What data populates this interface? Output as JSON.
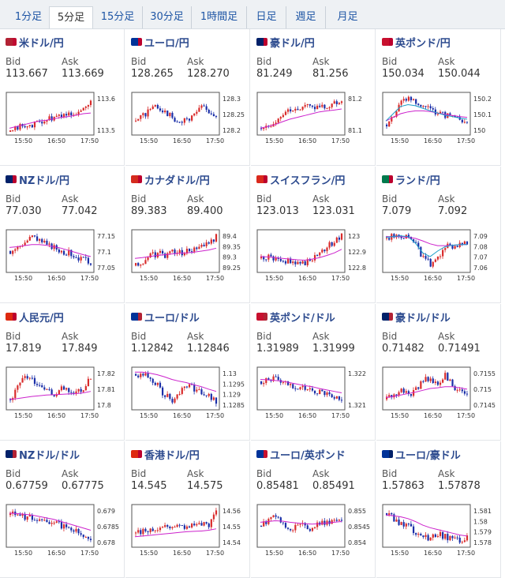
{
  "tabs": [
    {
      "label": "1分足",
      "active": false
    },
    {
      "label": "5分足",
      "active": true
    },
    {
      "label": "15分足",
      "active": false
    },
    {
      "label": "30分足",
      "active": false
    },
    {
      "label": "1時間足",
      "active": false
    },
    {
      "label": "日足",
      "active": false
    },
    {
      "label": "週足",
      "active": false
    },
    {
      "label": "月足",
      "active": false
    }
  ],
  "bid_label": "Bid",
  "ask_label": "Ask",
  "x_ticks": [
    "15:50",
    "16:50",
    "17:50"
  ],
  "colors": {
    "up": "#d92b2b",
    "down": "#1a2ea8",
    "ma": "#cc22cc",
    "ma2": "#1aa0c8"
  },
  "pairs": [
    {
      "name": "米ドル/円",
      "flag": [
        "#b22234",
        "#bf0a30"
      ],
      "bid": "113.667",
      "ask": "113.669",
      "y_ticks": [
        "113.6",
        "113.5"
      ],
      "trend": [
        0,
        0.1,
        0.2,
        0.15,
        0.3,
        0.35,
        0.4,
        0.45,
        0.5,
        0.55,
        0.62,
        0.8
      ],
      "ma": [
        0.1,
        0.15,
        0.2,
        0.25,
        0.3,
        0.32,
        0.36,
        0.4,
        0.42,
        0.46,
        0.5,
        0.52
      ],
      "ma2": []
    },
    {
      "name": "ユーロ/円",
      "flag": [
        "#003399",
        "#bc002d"
      ],
      "bid": "128.265",
      "ask": "128.270",
      "y_ticks": [
        "128.3",
        "128.25",
        "128.2"
      ],
      "trend": [
        0.3,
        0.45,
        0.6,
        0.7,
        0.55,
        0.4,
        0.25,
        0.35,
        0.5,
        0.7,
        0.55,
        0.4
      ],
      "ma": [],
      "ma2": []
    },
    {
      "name": "豪ドル/円",
      "flag": [
        "#012169",
        "#bc002d"
      ],
      "bid": "81.249",
      "ask": "81.256",
      "y_ticks": [
        "81.2",
        "81.1"
      ],
      "trend": [
        0.1,
        0.15,
        0.3,
        0.55,
        0.65,
        0.6,
        0.7,
        0.62,
        0.72,
        0.7,
        0.78,
        0.85
      ],
      "ma": [
        0.1,
        0.15,
        0.2,
        0.28,
        0.35,
        0.4,
        0.45,
        0.5,
        0.55,
        0.58,
        0.6,
        0.63
      ],
      "ma2": []
    },
    {
      "name": "英ポンド/円",
      "flag": [
        "#c8102e",
        "#bc002d"
      ],
      "bid": "150.034",
      "ask": "150.044",
      "y_ticks": [
        "150.2",
        "150.1",
        "150"
      ],
      "trend": [
        0.2,
        0.5,
        0.8,
        0.9,
        0.8,
        0.7,
        0.6,
        0.55,
        0.45,
        0.4,
        0.35,
        0.3
      ],
      "ma": [
        0.3,
        0.4,
        0.5,
        0.55,
        0.58,
        0.58,
        0.56,
        0.52,
        0.48,
        0.45,
        0.42,
        0.4
      ],
      "ma2": [
        0.3,
        0.5,
        0.7,
        0.75,
        0.72,
        0.65,
        0.58,
        0.52,
        0.46,
        0.42,
        0.38,
        0.35
      ]
    },
    {
      "name": "NZドル/円",
      "flag": [
        "#012169",
        "#bc002d"
      ],
      "bid": "77.030",
      "ask": "77.042",
      "y_ticks": [
        "77.15",
        "77.1",
        "77.05"
      ],
      "trend": [
        0.5,
        0.6,
        0.75,
        0.9,
        0.8,
        0.65,
        0.6,
        0.5,
        0.45,
        0.35,
        0.25,
        0.2
      ],
      "ma": [
        0.6,
        0.62,
        0.65,
        0.68,
        0.68,
        0.66,
        0.62,
        0.58,
        0.52,
        0.46,
        0.4,
        0.35
      ],
      "ma2": []
    },
    {
      "name": "カナダドル/円",
      "flag": [
        "#d52b1e",
        "#bc002d"
      ],
      "bid": "89.383",
      "ask": "89.400",
      "y_ticks": [
        "89.4",
        "89.35",
        "89.3",
        "89.25"
      ],
      "trend": [
        0.1,
        0.2,
        0.35,
        0.45,
        0.4,
        0.5,
        0.45,
        0.5,
        0.55,
        0.6,
        0.7,
        0.9
      ],
      "ma": [
        0.3,
        0.32,
        0.35,
        0.38,
        0.4,
        0.42,
        0.44,
        0.45,
        0.47,
        0.5,
        0.53,
        0.58
      ],
      "ma2": []
    },
    {
      "name": "スイスフラン/円",
      "flag": [
        "#da291c",
        "#bc002d"
      ],
      "bid": "123.013",
      "ask": "123.031",
      "y_ticks": [
        "123",
        "122.9",
        "122.8"
      ],
      "trend": [
        0.3,
        0.35,
        0.3,
        0.25,
        0.2,
        0.15,
        0.2,
        0.3,
        0.45,
        0.6,
        0.8,
        0.95
      ],
      "ma": [
        0.35,
        0.34,
        0.32,
        0.3,
        0.28,
        0.26,
        0.25,
        0.28,
        0.32,
        0.38,
        0.45,
        0.55
      ],
      "ma2": []
    },
    {
      "name": "ランド/円",
      "flag": [
        "#007a4d",
        "#bc002d"
      ],
      "bid": "7.079",
      "ask": "7.092",
      "y_ticks": [
        "7.09",
        "7.08",
        "7.07",
        "7.06"
      ],
      "trend": [
        0.85,
        0.9,
        0.92,
        0.95,
        0.7,
        0.3,
        0.15,
        0.35,
        0.6,
        0.65,
        0.7,
        0.68
      ],
      "ma": [
        0.9,
        0.9,
        0.9,
        0.88,
        0.85,
        0.78,
        0.7,
        0.65,
        0.65,
        0.66,
        0.68,
        0.68
      ],
      "ma2": [
        0.88,
        0.9,
        0.92,
        0.9,
        0.72,
        0.45,
        0.35,
        0.5,
        0.62,
        0.66,
        0.68,
        0.68
      ]
    },
    {
      "name": "人民元/円",
      "flag": [
        "#de2910",
        "#bc002d"
      ],
      "bid": "17.819",
      "ask": "17.849",
      "y_ticks": [
        "17.82",
        "17.81",
        "17.8"
      ],
      "trend": [
        0.2,
        0.5,
        0.8,
        0.7,
        0.5,
        0.4,
        0.35,
        0.5,
        0.45,
        0.4,
        0.5,
        0.8
      ],
      "ma": [
        0.2,
        0.22,
        0.25,
        0.28,
        0.3,
        0.32,
        0.33,
        0.34,
        0.35,
        0.36,
        0.38,
        0.42
      ],
      "ma2": []
    },
    {
      "name": "ユーロ/ドル",
      "flag": [
        "#003399",
        "#b22234"
      ],
      "bid": "1.12842",
      "ask": "1.12846",
      "y_ticks": [
        "1.13",
        "1.1295",
        "1.129",
        "1.1285"
      ],
      "trend": [
        0.9,
        0.85,
        0.8,
        0.6,
        0.3,
        0.2,
        0.4,
        0.6,
        0.5,
        0.4,
        0.3,
        0.15
      ],
      "ma": [
        0.95,
        0.95,
        0.92,
        0.88,
        0.82,
        0.75,
        0.7,
        0.66,
        0.6,
        0.55,
        0.48,
        0.42
      ],
      "ma2": []
    },
    {
      "name": "英ポンド/ドル",
      "flag": [
        "#c8102e",
        "#b22234"
      ],
      "bid": "1.31989",
      "ask": "1.31999",
      "y_ticks": [
        "1.322",
        "1.321"
      ],
      "trend": [
        0.7,
        0.8,
        0.75,
        0.65,
        0.6,
        0.55,
        0.5,
        0.45,
        0.4,
        0.35,
        0.25,
        0.1
      ],
      "ma": [
        0.75,
        0.74,
        0.72,
        0.7,
        0.66,
        0.62,
        0.58,
        0.55,
        0.5,
        0.46,
        0.42,
        0.38
      ],
      "ma2": []
    },
    {
      "name": "豪ドル/ドル",
      "flag": [
        "#012169",
        "#b22234"
      ],
      "bid": "0.71482",
      "ask": "0.71491",
      "y_ticks": [
        "0.7155",
        "0.715",
        "0.7145"
      ],
      "trend": [
        0.2,
        0.3,
        0.5,
        0.35,
        0.45,
        0.75,
        0.8,
        0.55,
        0.9,
        0.6,
        0.4,
        0.3
      ],
      "ma": [
        0.25,
        0.28,
        0.32,
        0.36,
        0.4,
        0.45,
        0.5,
        0.52,
        0.55,
        0.55,
        0.52,
        0.48
      ],
      "ma2": []
    },
    {
      "name": "NZドル/ドル",
      "flag": [
        "#012169",
        "#b22234"
      ],
      "bid": "0.67759",
      "ask": "0.67775",
      "y_ticks": [
        "0.679",
        "0.6785",
        "0.678"
      ],
      "trend": [
        0.8,
        0.85,
        0.75,
        0.7,
        0.72,
        0.65,
        0.6,
        0.5,
        0.45,
        0.35,
        0.2,
        0.1
      ],
      "ma": [
        0.85,
        0.84,
        0.82,
        0.8,
        0.76,
        0.72,
        0.68,
        0.62,
        0.56,
        0.5,
        0.44,
        0.38
      ],
      "ma2": []
    },
    {
      "name": "香港ドル/円",
      "flag": [
        "#de2910",
        "#bc002d"
      ],
      "bid": "14.545",
      "ask": "14.575",
      "y_ticks": [
        "14.56",
        "14.55",
        "14.54"
      ],
      "trend": [
        0.3,
        0.35,
        0.4,
        0.45,
        0.5,
        0.5,
        0.52,
        0.5,
        0.55,
        0.52,
        0.55,
        0.95
      ],
      "ma": [
        0.2,
        0.22,
        0.24,
        0.26,
        0.28,
        0.3,
        0.32,
        0.34,
        0.35,
        0.36,
        0.38,
        0.42
      ],
      "ma2": []
    },
    {
      "name": "ユーロ/英ポンド",
      "flag": [
        "#003399",
        "#c8102e"
      ],
      "bid": "0.85481",
      "ask": "0.85491",
      "y_ticks": [
        "0.855",
        "0.8545",
        "0.854"
      ],
      "trend": [
        0.5,
        0.7,
        0.8,
        0.5,
        0.3,
        0.55,
        0.5,
        0.4,
        0.6,
        0.55,
        0.65,
        0.7
      ],
      "ma": [
        0.6,
        0.62,
        0.64,
        0.63,
        0.6,
        0.58,
        0.56,
        0.55,
        0.56,
        0.58,
        0.6,
        0.62
      ],
      "ma2": []
    },
    {
      "name": "ユーロ/豪ドル",
      "flag": [
        "#003399",
        "#012169"
      ],
      "bid": "1.57863",
      "ask": "1.57878",
      "y_ticks": [
        "1.581",
        "1.58",
        "1.579",
        "1.578"
      ],
      "trend": [
        0.85,
        0.7,
        0.55,
        0.5,
        0.3,
        0.2,
        0.15,
        0.3,
        0.2,
        0.15,
        0.1,
        0.15
      ],
      "ma": [
        0.8,
        0.78,
        0.75,
        0.7,
        0.62,
        0.52,
        0.45,
        0.4,
        0.35,
        0.3,
        0.25,
        0.22
      ],
      "ma2": []
    }
  ]
}
